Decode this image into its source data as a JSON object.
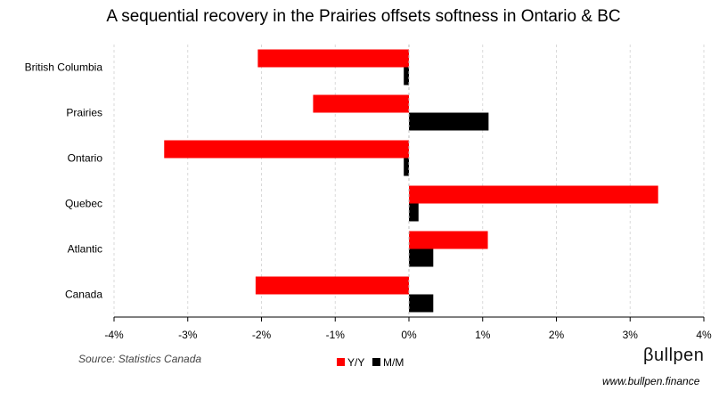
{
  "chart_data": {
    "type": "bar",
    "orientation": "horizontal",
    "title": "A sequential recovery in the Prairies offsets softness in Ontario & BC",
    "categories": [
      "British Columbia",
      "Prairies",
      "Ontario",
      "Quebec",
      "Atlantic",
      "Canada"
    ],
    "series": [
      {
        "name": "Y/Y",
        "color": "#ff0000",
        "values": [
          -2.05,
          -1.3,
          -3.32,
          3.38,
          1.07,
          -2.08
        ]
      },
      {
        "name": "M/M",
        "color": "#000000",
        "values": [
          -0.07,
          1.08,
          -0.07,
          0.13,
          0.33,
          0.33
        ]
      }
    ],
    "xlim": [
      -4,
      4
    ],
    "xticks": [
      -4,
      -3,
      -2,
      -1,
      0,
      1,
      2,
      3,
      4
    ],
    "xtick_labels": [
      "-4%",
      "-3%",
      "-2%",
      "-1%",
      "0%",
      "1%",
      "2%",
      "3%",
      "4%"
    ],
    "grid": true,
    "legend_position": "bottom"
  },
  "footer": {
    "source": "Source: Statistics Canada",
    "brand": "βullpen",
    "website": "www.bullpen.finance"
  }
}
